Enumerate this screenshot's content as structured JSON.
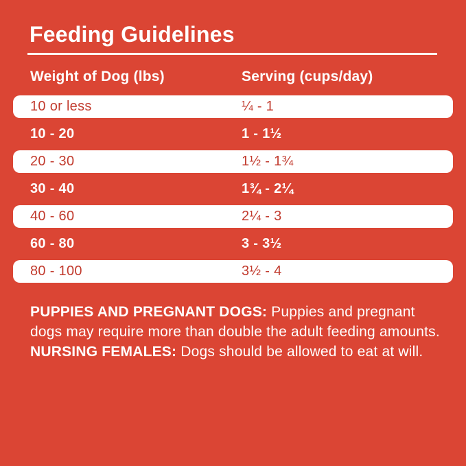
{
  "colors": {
    "background": "#DB4534",
    "row_background": "#FFFFFF",
    "row_text_red": "#C23B2E",
    "text_white": "#FFFFFF"
  },
  "title": "Feeding Guidelines",
  "table": {
    "headers": [
      "Weight of Dog (lbs)",
      "Serving (cups/day)"
    ],
    "rows": [
      {
        "weight": "10 or less",
        "serving": "¼ - 1",
        "style": "white"
      },
      {
        "weight": "10 - 20",
        "serving": "1 - 1½",
        "style": "red"
      },
      {
        "weight": "20 - 30",
        "serving": "1½ - 1¾",
        "style": "white"
      },
      {
        "weight": "30 - 40",
        "serving": "1¾ - 2¼",
        "style": "red"
      },
      {
        "weight": "40 - 60",
        "serving": "2¼ - 3",
        "style": "white"
      },
      {
        "weight": "60 - 80",
        "serving": "3 - 3½",
        "style": "red"
      },
      {
        "weight": "80 - 100",
        "serving": "3½ - 4",
        "style": "white"
      }
    ]
  },
  "footnote": {
    "segments": [
      {
        "text": "PUPPIES AND PREGNANT DOGS: ",
        "bold": true
      },
      {
        "text": "Puppies and pregnant dogs may require more than double the adult feeding amounts. ",
        "bold": false
      },
      {
        "text": "NURSING FEMALES: ",
        "bold": true
      },
      {
        "text": "Dogs should be allowed to eat at will.",
        "bold": false
      }
    ]
  }
}
